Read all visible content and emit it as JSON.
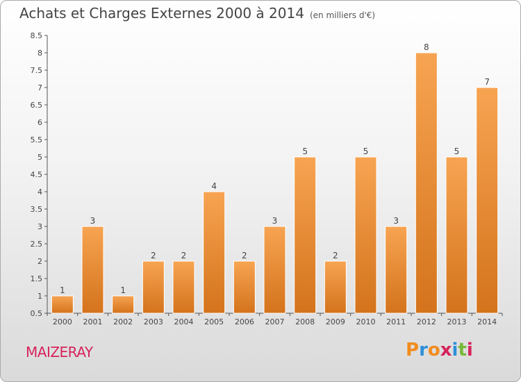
{
  "header": {
    "title": "Achats et Charges Externes 2000 à 2014",
    "unit": "(en milliers d'€)"
  },
  "footer": {
    "commune": "MAIZERAY",
    "brand": "Proxiti",
    "brand_colors": [
      "#f28c1d",
      "#2e8fd8",
      "#f28c1d",
      "#d6245c",
      "#2e8fd8",
      "#78b83a",
      "#d6245c"
    ]
  },
  "colors": {
    "bar_top": "#f7a452",
    "bar_bottom": "#d4731c",
    "bar_edge": "#ffffff"
  },
  "chart_data": {
    "type": "bar",
    "title": "Achats et Charges Externes 2000 à 2014",
    "subtitle": "(en milliers d'€)",
    "categories": [
      "2000",
      "2001",
      "2002",
      "2003",
      "2004",
      "2005",
      "2006",
      "2007",
      "2008",
      "2009",
      "2010",
      "2011",
      "2012",
      "2013",
      "2014"
    ],
    "values": [
      1,
      3,
      1,
      2,
      2,
      4,
      2,
      3,
      5,
      2,
      5,
      3,
      8,
      5,
      7
    ],
    "data_labels": [
      "1",
      "3",
      "1",
      "2",
      "2",
      "4",
      "2",
      "3",
      "5",
      "2",
      "5",
      "3",
      "8",
      "5",
      "7"
    ],
    "ylim": [
      0.5,
      8.5
    ],
    "yticks": [
      0.5,
      1,
      1.5,
      2,
      2.5,
      3,
      3.5,
      4,
      4.5,
      5,
      5.5,
      6,
      6.5,
      7,
      7.5,
      8,
      8.5
    ],
    "ytick_labels": [
      "0.5",
      "1",
      "1.5",
      "2",
      "2.5",
      "3",
      "3.5",
      "4",
      "4.5",
      "5",
      "5.5",
      "6",
      "6.5",
      "7",
      "7.5",
      "8",
      "8.5"
    ],
    "grid": false
  }
}
